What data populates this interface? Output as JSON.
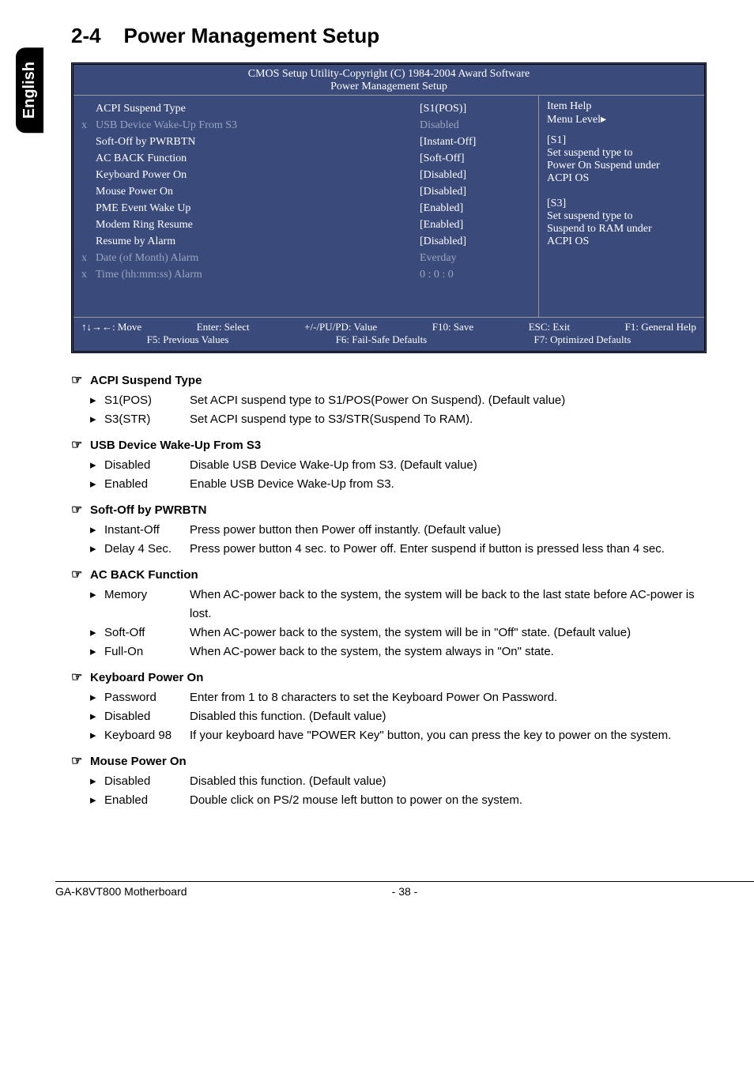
{
  "side_tab": "English",
  "section_number": "2-4",
  "section_title": "Power Management Setup",
  "bios": {
    "header_line1": "CMOS Setup Utility-Copyright (C) 1984-2004 Award Software",
    "header_line2": "Power Management Setup",
    "rows": [
      {
        "marker": "",
        "label": "ACPI Suspend Type",
        "value": "[S1(POS)]",
        "dim": false
      },
      {
        "marker": "x",
        "label": "USB Device Wake-Up From S3",
        "value": "Disabled",
        "dim": true
      },
      {
        "marker": "",
        "label": "Soft-Off by PWRBTN",
        "value": "[Instant-Off]",
        "dim": false
      },
      {
        "marker": "",
        "label": "AC BACK Function",
        "value": "[Soft-Off]",
        "dim": false
      },
      {
        "marker": "",
        "label": "Keyboard Power On",
        "value": "[Disabled]",
        "dim": false
      },
      {
        "marker": "",
        "label": "Mouse Power On",
        "value": "[Disabled]",
        "dim": false
      },
      {
        "marker": "",
        "label": "PME Event Wake Up",
        "value": "[Enabled]",
        "dim": false
      },
      {
        "marker": "",
        "label": "Modem Ring Resume",
        "value": "[Enabled]",
        "dim": false
      },
      {
        "marker": "",
        "label": "Resume by Alarm",
        "value": "[Disabled]",
        "dim": false
      },
      {
        "marker": "x",
        "label": "Date (of Month) Alarm",
        "value": "Everday",
        "dim": true
      },
      {
        "marker": "x",
        "label": "Time (hh:mm:ss) Alarm",
        "value": "0 : 0 : 0",
        "dim": true
      }
    ],
    "help": {
      "title": "Item Help",
      "menu_level": "Menu Level",
      "arrow": "▸",
      "lines": [
        "[S1]",
        "Set suspend type to",
        "Power On Suspend under",
        "ACPI OS",
        "",
        "[S3]",
        "Set suspend type to",
        "Suspend to RAM under",
        "ACPI OS"
      ]
    },
    "footer_row1": [
      "↑↓→←: Move",
      "Enter: Select",
      "+/-/PU/PD: Value",
      "F10: Save",
      "ESC: Exit",
      "F1: General Help"
    ],
    "footer_row2": [
      "F5: Previous Values",
      "F6: Fail-Safe Defaults",
      "F7: Optimized Defaults"
    ]
  },
  "definitions": [
    {
      "heading": "ACPI Suspend Type",
      "items": [
        {
          "key": "S1(POS)",
          "desc": "Set ACPI suspend type to S1/POS(Power On Suspend). (Default value)"
        },
        {
          "key": "S3(STR)",
          "desc": "Set ACPI suspend type to S3/STR(Suspend To RAM)."
        }
      ]
    },
    {
      "heading": "USB Device Wake-Up From S3",
      "items": [
        {
          "key": "Disabled",
          "desc": "Disable USB Device Wake-Up from S3. (Default value)"
        },
        {
          "key": "Enabled",
          "desc": "Enable USB Device Wake-Up from S3."
        }
      ]
    },
    {
      "heading": "Soft-Off by PWRBTN",
      "items": [
        {
          "key": "Instant-Off",
          "desc": "Press power button then Power off instantly. (Default value)"
        },
        {
          "key": "Delay 4 Sec.",
          "desc": "Press power button 4 sec. to Power off. Enter suspend if button is pressed less than 4 sec."
        }
      ]
    },
    {
      "heading": "AC BACK Function",
      "items": [
        {
          "key": "Memory",
          "desc": "When AC-power back to the system, the system will be back to the last state before AC-power is lost."
        },
        {
          "key": "Soft-Off",
          "desc": "When AC-power back to the system, the system will be in \"Off\" state. (Default value)"
        },
        {
          "key": "Full-On",
          "desc": "When AC-power back to the system, the system always in \"On\" state."
        }
      ]
    },
    {
      "heading": "Keyboard Power On",
      "items": [
        {
          "key": "Password",
          "desc": "Enter from 1 to 8 characters to set the Keyboard Power On Password."
        },
        {
          "key": "Disabled",
          "desc": "Disabled this function. (Default value)"
        },
        {
          "key": "Keyboard 98",
          "desc": "If your keyboard have \"POWER Key\" button, you can press the key to power on the system."
        }
      ]
    },
    {
      "heading": "Mouse Power On",
      "items": [
        {
          "key": "Disabled",
          "desc": "Disabled this function. (Default value)"
        },
        {
          "key": "Enabled",
          "desc": "Double click on PS/2 mouse left button to power on the system."
        }
      ]
    }
  ],
  "icons": {
    "hand": "☞",
    "arrow": "▸"
  },
  "footer": {
    "left": "GA-K8VT800 Motherboard",
    "center": "- 38 -"
  }
}
